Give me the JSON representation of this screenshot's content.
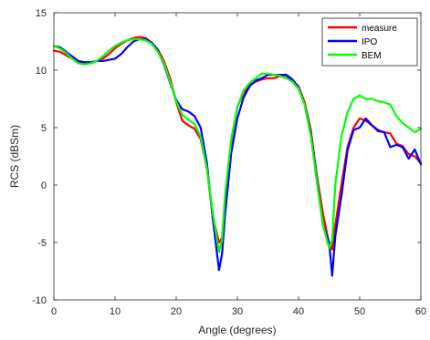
{
  "chart_data": {
    "type": "line",
    "title": "",
    "xlabel": "Angle (degrees)",
    "ylabel": "RCS (dBSm)",
    "xlim": [
      0,
      60
    ],
    "ylim": [
      -10,
      15
    ],
    "xticks": [
      0,
      10,
      20,
      30,
      40,
      50,
      60
    ],
    "yticks": [
      -10,
      -5,
      0,
      5,
      10,
      15
    ],
    "grid": false,
    "box": true,
    "legend_position": "top-right",
    "series": [
      {
        "name": "measure",
        "color": "#ff0000",
        "points": [
          [
            0,
            11.7
          ],
          [
            1,
            11.6
          ],
          [
            2,
            11.3
          ],
          [
            3,
            11.0
          ],
          [
            4,
            10.7
          ],
          [
            5,
            10.6
          ],
          [
            6,
            10.6
          ],
          [
            7,
            10.8
          ],
          [
            8,
            11.0
          ],
          [
            9,
            11.4
          ],
          [
            10,
            11.9
          ],
          [
            11,
            12.3
          ],
          [
            12,
            12.6
          ],
          [
            13,
            12.8
          ],
          [
            14,
            12.9
          ],
          [
            15,
            12.8
          ],
          [
            16,
            12.4
          ],
          [
            17,
            11.8
          ],
          [
            18,
            10.8
          ],
          [
            19,
            9.3
          ],
          [
            20,
            7.2
          ],
          [
            21,
            5.6
          ],
          [
            22,
            5.2
          ],
          [
            23,
            4.9
          ],
          [
            24,
            4.0
          ],
          [
            25,
            1.5
          ],
          [
            26,
            -2.8
          ],
          [
            27,
            -5.0
          ],
          [
            27.5,
            -4.6
          ],
          [
            28,
            -1.2
          ],
          [
            29,
            3.8
          ],
          [
            30,
            6.8
          ],
          [
            31,
            8.0
          ],
          [
            32,
            8.7
          ],
          [
            33,
            9.0
          ],
          [
            34,
            9.2
          ],
          [
            35,
            9.3
          ],
          [
            36,
            9.3
          ],
          [
            37,
            9.5
          ],
          [
            38,
            9.4
          ],
          [
            39,
            9.1
          ],
          [
            40,
            8.6
          ],
          [
            41,
            7.2
          ],
          [
            42,
            4.8
          ],
          [
            43,
            0.8
          ],
          [
            44,
            -2.5
          ],
          [
            45,
            -5.1
          ],
          [
            45.5,
            -5.6
          ],
          [
            46,
            -3.5
          ],
          [
            47,
            0.0
          ],
          [
            48,
            3.3
          ],
          [
            49,
            5.0
          ],
          [
            50,
            5.8
          ],
          [
            51,
            5.6
          ],
          [
            52,
            5.2
          ],
          [
            53,
            4.8
          ],
          [
            54,
            4.6
          ],
          [
            55,
            4.5
          ],
          [
            56,
            3.6
          ],
          [
            57,
            3.4
          ],
          [
            58,
            2.7
          ],
          [
            59,
            2.5
          ],
          [
            60,
            1.9
          ]
        ]
      },
      {
        "name": "IPO",
        "color": "#0000ff",
        "points": [
          [
            0,
            12.1
          ],
          [
            1,
            12.0
          ],
          [
            2,
            11.6
          ],
          [
            3,
            11.2
          ],
          [
            4,
            10.8
          ],
          [
            5,
            10.7
          ],
          [
            6,
            10.7
          ],
          [
            7,
            10.8
          ],
          [
            8,
            10.8
          ],
          [
            9,
            10.9
          ],
          [
            10,
            11.0
          ],
          [
            11,
            11.4
          ],
          [
            12,
            12.0
          ],
          [
            13,
            12.5
          ],
          [
            14,
            12.7
          ],
          [
            15,
            12.7
          ],
          [
            16,
            12.4
          ],
          [
            17,
            11.7
          ],
          [
            18,
            10.5
          ],
          [
            19,
            8.9
          ],
          [
            20,
            7.4
          ],
          [
            21,
            6.6
          ],
          [
            22,
            6.4
          ],
          [
            23,
            6.0
          ],
          [
            24,
            5.0
          ],
          [
            25,
            2.0
          ],
          [
            26,
            -3.0
          ],
          [
            27,
            -7.4
          ],
          [
            27.5,
            -6.0
          ],
          [
            28,
            -2.5
          ],
          [
            29,
            2.8
          ],
          [
            30,
            5.8
          ],
          [
            31,
            7.6
          ],
          [
            32,
            8.6
          ],
          [
            33,
            9.1
          ],
          [
            34,
            9.3
          ],
          [
            35,
            9.6
          ],
          [
            36,
            9.6
          ],
          [
            37,
            9.6
          ],
          [
            38,
            9.6
          ],
          [
            39,
            9.2
          ],
          [
            40,
            8.5
          ],
          [
            41,
            7.0
          ],
          [
            42,
            4.5
          ],
          [
            43,
            0.5
          ],
          [
            44,
            -3.5
          ],
          [
            45,
            -5.0
          ],
          [
            45.5,
            -7.9
          ],
          [
            46,
            -4.5
          ],
          [
            47,
            -1.0
          ],
          [
            48,
            3.0
          ],
          [
            49,
            4.8
          ],
          [
            50,
            5.0
          ],
          [
            51,
            5.8
          ],
          [
            52,
            5.2
          ],
          [
            53,
            4.7
          ],
          [
            54,
            4.6
          ],
          [
            55,
            3.3
          ],
          [
            56,
            3.5
          ],
          [
            57,
            3.3
          ],
          [
            58,
            2.3
          ],
          [
            59,
            3.1
          ],
          [
            60,
            1.8
          ]
        ]
      },
      {
        "name": "BEM",
        "color": "#00ff00",
        "points": [
          [
            0,
            12.1
          ],
          [
            1,
            11.9
          ],
          [
            2,
            11.5
          ],
          [
            3,
            11.0
          ],
          [
            4,
            10.6
          ],
          [
            5,
            10.5
          ],
          [
            6,
            10.6
          ],
          [
            7,
            10.8
          ],
          [
            8,
            11.2
          ],
          [
            9,
            11.7
          ],
          [
            10,
            12.1
          ],
          [
            11,
            12.4
          ],
          [
            12,
            12.6
          ],
          [
            13,
            12.7
          ],
          [
            14,
            12.7
          ],
          [
            15,
            12.6
          ],
          [
            16,
            12.3
          ],
          [
            17,
            11.6
          ],
          [
            18,
            10.6
          ],
          [
            19,
            9.0
          ],
          [
            20,
            7.3
          ],
          [
            21,
            6.1
          ],
          [
            22,
            5.7
          ],
          [
            23,
            5.3
          ],
          [
            24,
            4.2
          ],
          [
            25,
            1.5
          ],
          [
            26,
            -2.5
          ],
          [
            27,
            -5.8
          ],
          [
            27.5,
            -4.8
          ],
          [
            28,
            -0.8
          ],
          [
            29,
            4.0
          ],
          [
            30,
            6.8
          ],
          [
            31,
            8.2
          ],
          [
            32,
            8.9
          ],
          [
            33,
            9.3
          ],
          [
            34,
            9.7
          ],
          [
            35,
            9.7
          ],
          [
            36,
            9.6
          ],
          [
            37,
            9.5
          ],
          [
            38,
            9.3
          ],
          [
            39,
            9.0
          ],
          [
            40,
            8.4
          ],
          [
            41,
            7.0
          ],
          [
            42,
            4.3
          ],
          [
            43,
            0.3
          ],
          [
            44,
            -3.5
          ],
          [
            45,
            -5.5
          ],
          [
            45.5,
            -4.8
          ],
          [
            46,
            0.0
          ],
          [
            47,
            4.2
          ],
          [
            48,
            6.3
          ],
          [
            49,
            7.5
          ],
          [
            50,
            7.8
          ],
          [
            51,
            7.5
          ],
          [
            52,
            7.5
          ],
          [
            53,
            7.3
          ],
          [
            54,
            7.2
          ],
          [
            55,
            7.0
          ],
          [
            56,
            6.0
          ],
          [
            57,
            5.4
          ],
          [
            58,
            5.0
          ],
          [
            59,
            4.6
          ],
          [
            60,
            4.9
          ]
        ]
      }
    ]
  }
}
